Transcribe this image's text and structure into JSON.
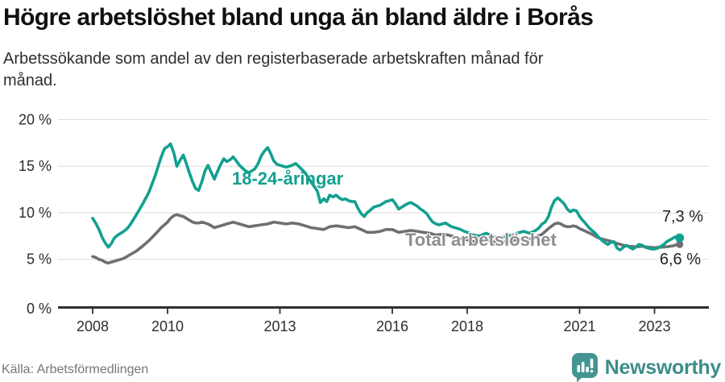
{
  "header": {
    "title": "Högre arbetslöshet bland unga än bland äldre i Borås",
    "subtitle_lines": [
      "Arbetssökande som andel av den registerbaserade arbetskraften månad för",
      "månad."
    ]
  },
  "footer": {
    "source": "Källa: Arbetsförmedlingen",
    "brand": "Newsworthy",
    "brand_color": "#449592"
  },
  "chart_data": {
    "type": "line",
    "title": "Högre arbetslöshet bland unga än bland äldre i Borås",
    "xlabel": "",
    "ylabel": "",
    "unit": "%",
    "grid": true,
    "x_axis": {
      "ticks": [
        2008,
        2010,
        2013,
        2016,
        2018,
        2021,
        2023
      ],
      "labels": [
        "2008",
        "2010",
        "2013",
        "2016",
        "2018",
        "2021",
        "2023"
      ],
      "range": [
        2008,
        2023.7
      ]
    },
    "y_axis": {
      "ticks": [
        0,
        5,
        10,
        15,
        20
      ],
      "labels": [
        "0 %",
        "5 %",
        "10 %",
        "15 %",
        "20 %"
      ],
      "range": [
        0,
        20
      ]
    },
    "series": [
      {
        "id": "youth",
        "name": "18-24-åringar",
        "color": "#13A08F",
        "end_label": "7,3 %",
        "end_value": 7.3,
        "points": [
          [
            2008.0,
            9.4
          ],
          [
            2008.08,
            8.9
          ],
          [
            2008.17,
            8.2
          ],
          [
            2008.25,
            7.4
          ],
          [
            2008.33,
            6.8
          ],
          [
            2008.42,
            6.3
          ],
          [
            2008.5,
            6.7
          ],
          [
            2008.58,
            7.3
          ],
          [
            2008.67,
            7.6
          ],
          [
            2008.75,
            7.8
          ],
          [
            2008.83,
            8.0
          ],
          [
            2008.92,
            8.3
          ],
          [
            2009.0,
            8.7
          ],
          [
            2009.17,
            9.8
          ],
          [
            2009.33,
            10.9
          ],
          [
            2009.5,
            12.2
          ],
          [
            2009.67,
            14.0
          ],
          [
            2009.83,
            16.0
          ],
          [
            2009.92,
            16.9
          ],
          [
            2010.0,
            17.1
          ],
          [
            2010.08,
            17.4
          ],
          [
            2010.17,
            16.4
          ],
          [
            2010.25,
            15.0
          ],
          [
            2010.33,
            15.6
          ],
          [
            2010.42,
            16.2
          ],
          [
            2010.5,
            15.3
          ],
          [
            2010.58,
            14.3
          ],
          [
            2010.67,
            13.3
          ],
          [
            2010.75,
            12.6
          ],
          [
            2010.83,
            12.4
          ],
          [
            2010.92,
            13.4
          ],
          [
            2011.0,
            14.5
          ],
          [
            2011.08,
            15.1
          ],
          [
            2011.17,
            14.3
          ],
          [
            2011.25,
            13.6
          ],
          [
            2011.33,
            14.4
          ],
          [
            2011.42,
            15.2
          ],
          [
            2011.5,
            15.8
          ],
          [
            2011.58,
            15.5
          ],
          [
            2011.67,
            15.7
          ],
          [
            2011.75,
            16.0
          ],
          [
            2011.83,
            15.6
          ],
          [
            2011.92,
            15.1
          ],
          [
            2012.0,
            14.8
          ],
          [
            2012.08,
            14.5
          ],
          [
            2012.17,
            14.3
          ],
          [
            2012.25,
            14.5
          ],
          [
            2012.33,
            14.7
          ],
          [
            2012.42,
            15.3
          ],
          [
            2012.5,
            16.1
          ],
          [
            2012.58,
            16.6
          ],
          [
            2012.67,
            17.0
          ],
          [
            2012.75,
            16.4
          ],
          [
            2012.83,
            15.6
          ],
          [
            2012.92,
            15.2
          ],
          [
            2013.0,
            15.1
          ],
          [
            2013.17,
            14.9
          ],
          [
            2013.33,
            15.1
          ],
          [
            2013.42,
            15.3
          ],
          [
            2013.5,
            15.0
          ],
          [
            2013.67,
            14.3
          ],
          [
            2013.83,
            13.3
          ],
          [
            2013.92,
            12.8
          ],
          [
            2014.0,
            12.3
          ],
          [
            2014.08,
            11.1
          ],
          [
            2014.17,
            11.5
          ],
          [
            2014.25,
            11.2
          ],
          [
            2014.33,
            11.9
          ],
          [
            2014.42,
            11.7
          ],
          [
            2014.5,
            11.9
          ],
          [
            2014.58,
            11.6
          ],
          [
            2014.67,
            11.4
          ],
          [
            2014.75,
            11.5
          ],
          [
            2014.83,
            11.3
          ],
          [
            2014.92,
            11.2
          ],
          [
            2015.0,
            11.2
          ],
          [
            2015.08,
            10.5
          ],
          [
            2015.17,
            9.9
          ],
          [
            2015.25,
            9.6
          ],
          [
            2015.33,
            10.0
          ],
          [
            2015.42,
            10.3
          ],
          [
            2015.5,
            10.6
          ],
          [
            2015.58,
            10.7
          ],
          [
            2015.67,
            10.8
          ],
          [
            2015.75,
            11.0
          ],
          [
            2015.83,
            11.2
          ],
          [
            2015.92,
            11.3
          ],
          [
            2016.0,
            11.4
          ],
          [
            2016.08,
            11.0
          ],
          [
            2016.17,
            10.4
          ],
          [
            2016.25,
            10.6
          ],
          [
            2016.33,
            10.8
          ],
          [
            2016.42,
            11.0
          ],
          [
            2016.5,
            11.1
          ],
          [
            2016.58,
            10.9
          ],
          [
            2016.67,
            10.7
          ],
          [
            2016.75,
            10.4
          ],
          [
            2016.83,
            10.2
          ],
          [
            2016.92,
            9.9
          ],
          [
            2017.0,
            9.4
          ],
          [
            2017.08,
            9.0
          ],
          [
            2017.17,
            8.8
          ],
          [
            2017.25,
            8.7
          ],
          [
            2017.33,
            8.8
          ],
          [
            2017.42,
            8.9
          ],
          [
            2017.5,
            8.7
          ],
          [
            2017.58,
            8.5
          ],
          [
            2017.67,
            8.4
          ],
          [
            2017.75,
            8.3
          ],
          [
            2017.83,
            8.2
          ],
          [
            2017.92,
            8.0
          ],
          [
            2018.0,
            7.9
          ],
          [
            2018.17,
            7.6
          ],
          [
            2018.33,
            7.5
          ],
          [
            2018.5,
            7.8
          ],
          [
            2018.67,
            7.5
          ],
          [
            2018.83,
            7.3
          ],
          [
            2019.0,
            7.4
          ],
          [
            2019.17,
            7.6
          ],
          [
            2019.33,
            7.8
          ],
          [
            2019.5,
            8.0
          ],
          [
            2019.67,
            7.8
          ],
          [
            2019.83,
            8.1
          ],
          [
            2019.92,
            8.4
          ],
          [
            2020.0,
            8.8
          ],
          [
            2020.08,
            9.0
          ],
          [
            2020.17,
            9.6
          ],
          [
            2020.25,
            10.6
          ],
          [
            2020.33,
            11.3
          ],
          [
            2020.42,
            11.6
          ],
          [
            2020.5,
            11.3
          ],
          [
            2020.58,
            11.0
          ],
          [
            2020.67,
            10.4
          ],
          [
            2020.75,
            10.1
          ],
          [
            2020.83,
            10.3
          ],
          [
            2020.92,
            10.2
          ],
          [
            2021.0,
            9.6
          ],
          [
            2021.08,
            9.2
          ],
          [
            2021.17,
            8.8
          ],
          [
            2021.25,
            8.4
          ],
          [
            2021.33,
            8.1
          ],
          [
            2021.42,
            7.8
          ],
          [
            2021.5,
            7.4
          ],
          [
            2021.58,
            7.1
          ],
          [
            2021.67,
            6.8
          ],
          [
            2021.75,
            6.6
          ],
          [
            2021.83,
            6.8
          ],
          [
            2021.92,
            6.9
          ],
          [
            2022.0,
            6.2
          ],
          [
            2022.08,
            6.0
          ],
          [
            2022.17,
            6.3
          ],
          [
            2022.25,
            6.5
          ],
          [
            2022.33,
            6.3
          ],
          [
            2022.42,
            6.1
          ],
          [
            2022.5,
            6.3
          ],
          [
            2022.58,
            6.6
          ],
          [
            2022.67,
            6.5
          ],
          [
            2022.75,
            6.3
          ],
          [
            2022.83,
            6.2
          ],
          [
            2022.92,
            6.1
          ],
          [
            2023.0,
            6.1
          ],
          [
            2023.08,
            6.2
          ],
          [
            2023.17,
            6.4
          ],
          [
            2023.25,
            6.6
          ],
          [
            2023.33,
            6.9
          ],
          [
            2023.42,
            7.1
          ],
          [
            2023.5,
            7.3
          ],
          [
            2023.58,
            7.45
          ],
          [
            2023.67,
            7.3
          ]
        ]
      },
      {
        "id": "total",
        "name": "Total arbetslöshet",
        "color": "#6F6F73",
        "end_label": "6,6 %",
        "end_value": 6.6,
        "points": [
          [
            2008.0,
            5.3
          ],
          [
            2008.08,
            5.2
          ],
          [
            2008.17,
            5.0
          ],
          [
            2008.25,
            4.9
          ],
          [
            2008.33,
            4.7
          ],
          [
            2008.42,
            4.6
          ],
          [
            2008.5,
            4.7
          ],
          [
            2008.58,
            4.8
          ],
          [
            2008.67,
            4.9
          ],
          [
            2008.75,
            5.0
          ],
          [
            2008.83,
            5.1
          ],
          [
            2008.92,
            5.3
          ],
          [
            2009.0,
            5.5
          ],
          [
            2009.17,
            5.9
          ],
          [
            2009.33,
            6.4
          ],
          [
            2009.5,
            7.0
          ],
          [
            2009.67,
            7.7
          ],
          [
            2009.83,
            8.4
          ],
          [
            2010.0,
            9.0
          ],
          [
            2010.08,
            9.4
          ],
          [
            2010.17,
            9.7
          ],
          [
            2010.25,
            9.8
          ],
          [
            2010.33,
            9.7
          ],
          [
            2010.42,
            9.6
          ],
          [
            2010.5,
            9.4
          ],
          [
            2010.58,
            9.2
          ],
          [
            2010.67,
            9.0
          ],
          [
            2010.75,
            8.9
          ],
          [
            2010.83,
            8.9
          ],
          [
            2010.92,
            9.0
          ],
          [
            2011.0,
            8.9
          ],
          [
            2011.08,
            8.8
          ],
          [
            2011.17,
            8.6
          ],
          [
            2011.25,
            8.4
          ],
          [
            2011.33,
            8.5
          ],
          [
            2011.42,
            8.6
          ],
          [
            2011.5,
            8.7
          ],
          [
            2011.58,
            8.8
          ],
          [
            2011.67,
            8.9
          ],
          [
            2011.75,
            9.0
          ],
          [
            2011.83,
            8.9
          ],
          [
            2011.92,
            8.8
          ],
          [
            2012.0,
            8.7
          ],
          [
            2012.17,
            8.5
          ],
          [
            2012.33,
            8.6
          ],
          [
            2012.5,
            8.7
          ],
          [
            2012.67,
            8.8
          ],
          [
            2012.83,
            9.0
          ],
          [
            2013.0,
            8.9
          ],
          [
            2013.17,
            8.8
          ],
          [
            2013.33,
            8.9
          ],
          [
            2013.5,
            8.8
          ],
          [
            2013.67,
            8.6
          ],
          [
            2013.83,
            8.4
          ],
          [
            2014.0,
            8.3
          ],
          [
            2014.17,
            8.2
          ],
          [
            2014.33,
            8.5
          ],
          [
            2014.5,
            8.6
          ],
          [
            2014.67,
            8.5
          ],
          [
            2014.83,
            8.4
          ],
          [
            2015.0,
            8.5
          ],
          [
            2015.17,
            8.2
          ],
          [
            2015.33,
            7.9
          ],
          [
            2015.5,
            7.9
          ],
          [
            2015.67,
            8.0
          ],
          [
            2015.83,
            8.2
          ],
          [
            2016.0,
            8.2
          ],
          [
            2016.17,
            7.9
          ],
          [
            2016.33,
            8.0
          ],
          [
            2016.5,
            8.1
          ],
          [
            2016.67,
            8.0
          ],
          [
            2016.83,
            7.9
          ],
          [
            2017.0,
            7.8
          ],
          [
            2017.17,
            7.6
          ],
          [
            2017.33,
            7.7
          ],
          [
            2017.5,
            7.6
          ],
          [
            2017.67,
            7.4
          ],
          [
            2017.83,
            7.2
          ],
          [
            2018.0,
            7.1
          ],
          [
            2018.17,
            6.9
          ],
          [
            2018.33,
            7.0
          ],
          [
            2018.5,
            7.1
          ],
          [
            2018.67,
            6.9
          ],
          [
            2018.83,
            6.8
          ],
          [
            2019.0,
            6.9
          ],
          [
            2019.17,
            7.0
          ],
          [
            2019.33,
            7.1
          ],
          [
            2019.5,
            7.2
          ],
          [
            2019.67,
            7.2
          ],
          [
            2019.83,
            7.4
          ],
          [
            2020.0,
            7.7
          ],
          [
            2020.17,
            8.3
          ],
          [
            2020.33,
            8.8
          ],
          [
            2020.42,
            8.9
          ],
          [
            2020.5,
            8.8
          ],
          [
            2020.58,
            8.6
          ],
          [
            2020.67,
            8.5
          ],
          [
            2020.75,
            8.5
          ],
          [
            2020.83,
            8.6
          ],
          [
            2020.92,
            8.5
          ],
          [
            2021.0,
            8.3
          ],
          [
            2021.17,
            8.0
          ],
          [
            2021.33,
            7.7
          ],
          [
            2021.5,
            7.3
          ],
          [
            2021.67,
            7.1
          ],
          [
            2021.83,
            6.95
          ],
          [
            2022.0,
            6.7
          ],
          [
            2022.17,
            6.5
          ],
          [
            2022.33,
            6.4
          ],
          [
            2022.5,
            6.35
          ],
          [
            2022.67,
            6.4
          ],
          [
            2022.83,
            6.3
          ],
          [
            2023.0,
            6.25
          ],
          [
            2023.17,
            6.3
          ],
          [
            2023.33,
            6.35
          ],
          [
            2023.5,
            6.45
          ],
          [
            2023.58,
            6.55
          ],
          [
            2023.67,
            6.6
          ]
        ]
      }
    ]
  }
}
